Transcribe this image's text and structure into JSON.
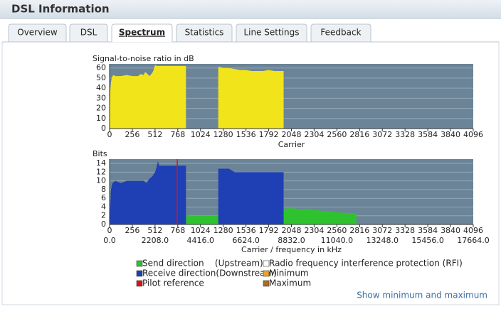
{
  "header": {
    "title": "DSL Information"
  },
  "tabs": [
    "Overview",
    "DSL",
    "Spectrum",
    "Statistics",
    "Line Settings",
    "Feedback"
  ],
  "active_tab": 2,
  "chart_data": [
    {
      "type": "area",
      "ylabel": "Signal-to-noise ratio in dB",
      "xlabel": "Carrier",
      "xlim": [
        0,
        4096
      ],
      "xticks": [
        0,
        256,
        512,
        768,
        1024,
        1280,
        1536,
        1792,
        2048,
        2304,
        2560,
        2816,
        3072,
        3328,
        3584,
        3840,
        4096
      ],
      "ylim": [
        0,
        64
      ],
      "yticks": [
        0,
        10,
        20,
        30,
        40,
        50,
        60
      ],
      "grid": true,
      "series": [
        {
          "color": "#f2e41a",
          "x": [
            0,
            8,
            16,
            24,
            32,
            48,
            64,
            128,
            192,
            256,
            320,
            352,
            384,
            400,
            416,
            448,
            480,
            496,
            512,
            528,
            576,
            640,
            704,
            768,
            832,
            860,
            1000,
            1224,
            1240,
            1280,
            1344,
            1408,
            1472,
            1536,
            1600,
            1664,
            1728,
            1792,
            1856,
            1920,
            1960
          ],
          "values": [
            0,
            38,
            46,
            50,
            52,
            53,
            52,
            52,
            53,
            52,
            52,
            54,
            53,
            56,
            55,
            52,
            55,
            58,
            63,
            62,
            62,
            62,
            62,
            62,
            62,
            62,
            null,
            61,
            61,
            60,
            60,
            59,
            58,
            58,
            57,
            57,
            57,
            58,
            57,
            57,
            57
          ]
        }
      ]
    },
    {
      "type": "area",
      "ylabel": "Bits",
      "xlabel": "Carrier / frequency in kHz",
      "xlim": [
        0,
        4096
      ],
      "xticks": [
        0,
        256,
        512,
        768,
        1024,
        1280,
        1536,
        1792,
        2048,
        2304,
        2560,
        2816,
        3072,
        3328,
        3584,
        3840,
        4096
      ],
      "x2lim": [
        0,
        17664
      ],
      "x2ticks": [
        {
          "value": 0,
          "label": "0.0"
        },
        {
          "value": 2208,
          "label": "2208.0"
        },
        {
          "value": 4416,
          "label": "4416.0"
        },
        {
          "value": 6624,
          "label": "6624.0"
        },
        {
          "value": 8832,
          "label": "8832.0"
        },
        {
          "value": 11040,
          "label": "11040.0"
        },
        {
          "value": 13248,
          "label": "13248.0"
        },
        {
          "value": 15456,
          "label": "15456.0"
        },
        {
          "value": 17664,
          "label": "17664.0"
        }
      ],
      "ylim": [
        0,
        15
      ],
      "yticks": [
        0,
        2,
        4,
        6,
        8,
        10,
        12,
        14
      ],
      "grid": true,
      "series": [
        {
          "name": "Send direction    (Upstream)",
          "color": "#2ec32e",
          "x": [
            864,
            900,
            960,
            1024,
            1088,
            1152,
            1224,
            1500,
            1964,
            2000,
            2048,
            2112,
            2176,
            2240,
            2304,
            2368,
            2432,
            2496,
            2560,
            2624,
            2688,
            2752,
            2780
          ],
          "values": [
            2.3,
            2,
            2,
            2,
            2,
            2,
            2,
            null,
            3.6,
            3.6,
            3.8,
            3.5,
            3.4,
            3.6,
            3.3,
            3.2,
            3,
            3,
            2.8,
            2.7,
            2.6,
            2.5,
            2.5
          ]
        },
        {
          "name": "Receive direction(Downstream)",
          "color": "#1f3fb5",
          "x": [
            0,
            16,
            32,
            64,
            128,
            192,
            256,
            320,
            384,
            416,
            448,
            480,
            512,
            528,
            544,
            560,
            576,
            640,
            704,
            768,
            832,
            860,
            1000,
            1224,
            1280,
            1344,
            1408,
            1472,
            1536,
            1600,
            1664,
            1728,
            1792,
            1856,
            1920,
            1960
          ],
          "values": [
            0,
            8,
            9.5,
            10,
            9.5,
            10,
            10,
            10,
            10,
            9.5,
            10.5,
            11,
            12,
            13,
            14.5,
            13.5,
            13.5,
            13.5,
            13.5,
            13.5,
            13.5,
            13.5,
            null,
            12.8,
            12.8,
            12.8,
            12,
            12,
            12,
            12,
            12,
            12,
            12,
            12,
            12,
            12
          ]
        },
        {
          "name": "Radio frequency interference protection (RFI)",
          "color": "#ffffff"
        },
        {
          "name": "Minimum",
          "color": "#f0a020"
        },
        {
          "name": "Maximum",
          "color": "#b06a20"
        }
      ],
      "pilot": {
        "name": "Pilot reference",
        "color": "#dd1111",
        "x": 762
      }
    }
  ],
  "link": "Show minimum and maximum"
}
